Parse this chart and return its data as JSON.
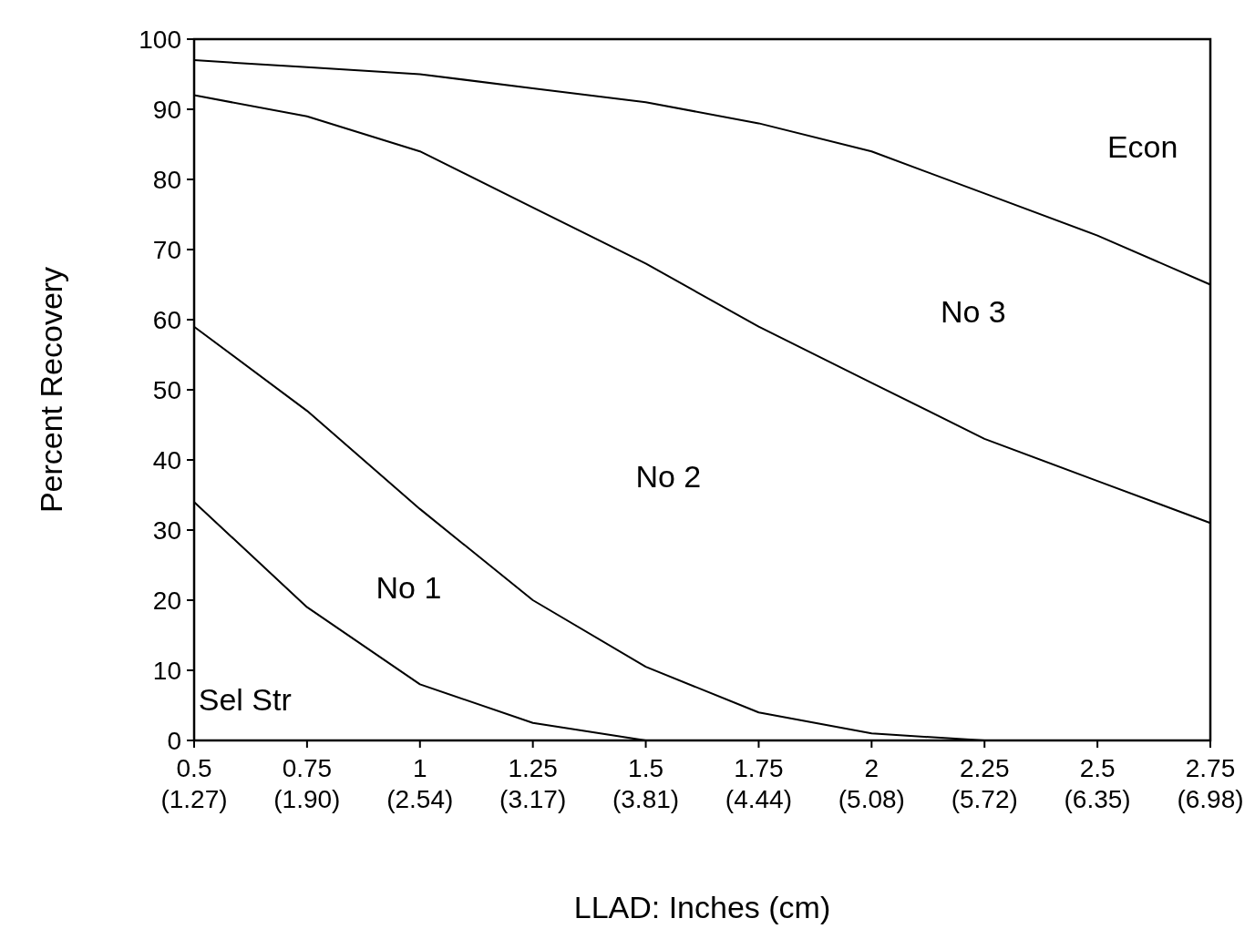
{
  "chart_data": {
    "type": "line",
    "xlabel": "LLAD:  Inches (cm)",
    "ylabel": "Percent Recovery",
    "categories": [
      "0.5\n(1.27)",
      "0.75\n(1.90)",
      "1\n(2.54)",
      "1.25\n(3.17)",
      "1.5\n(3.81)",
      "1.75\n(4.44)",
      "2\n(5.08)",
      "2.25\n(5.72)",
      "2.5\n(6.35)",
      "2.75\n(6.98)"
    ],
    "series": [
      {
        "color": "#000000",
        "values": [
          34,
          19,
          8,
          2.5,
          0,
          0,
          0,
          0,
          0,
          0
        ]
      },
      {
        "color": "#000000",
        "values": [
          59,
          47,
          33,
          20,
          10.5,
          4,
          1,
          0,
          0,
          0
        ]
      },
      {
        "color": "#000000",
        "values": [
          92,
          89,
          84,
          76,
          68,
          59,
          51,
          43,
          37,
          31
        ]
      },
      {
        "color": "#000000",
        "values": [
          97,
          96,
          95,
          93,
          91,
          88,
          84,
          78,
          72,
          65
        ]
      }
    ],
    "ylim": [
      0,
      100
    ],
    "yticks": [
      0,
      10,
      20,
      30,
      40,
      50,
      60,
      70,
      80,
      90,
      100
    ],
    "annotations": [
      "Econ",
      "No 3",
      "No 2",
      "No 1",
      "Sel Str"
    ],
    "grid": false,
    "marker": "none",
    "line_style": "solid"
  }
}
